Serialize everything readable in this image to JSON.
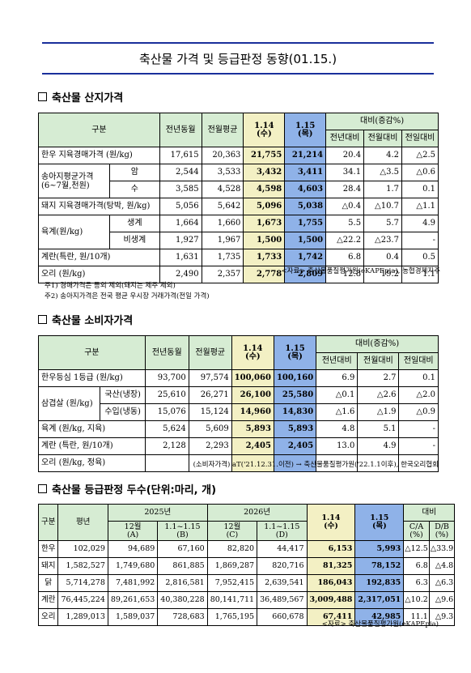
{
  "title": "축산물 가격 및 등급판정 동향(01.15.)",
  "section1": {
    "heading": "축산물 산지가격",
    "headers": {
      "col0": "구분",
      "prev_year": "전년동월",
      "prev_month": "전월평균",
      "d1": "1.14",
      "d1_sub": "(수)",
      "d2": "1.15",
      "d2_sub": "(목)",
      "compare": "대비(증감%)",
      "c1": "전년대비",
      "c2": "전월대비",
      "c3": "전일대비"
    },
    "rows": [
      {
        "label": "한우 지육경매가격 (원/kg)",
        "sub": "",
        "v": [
          "17,615",
          "20,363",
          "21,755",
          "21,214",
          "20.4",
          "4.2",
          "△2.5"
        ]
      },
      {
        "label": "송아지평균가격",
        "label2": "(6~7월,천원)",
        "sub": "암",
        "v": [
          "2,544",
          "3,533",
          "3,432",
          "3,411",
          "34.1",
          "△3.5",
          "△0.6"
        ]
      },
      {
        "label": "",
        "sub": "수",
        "v": [
          "3,585",
          "4,528",
          "4,598",
          "4,603",
          "28.4",
          "1.7",
          "0.1"
        ]
      },
      {
        "label": "돼지 지육경매가격(탕박, 원/kg)",
        "sub": "",
        "v": [
          "5,056",
          "5,642",
          "5,096",
          "5,038",
          "△0.4",
          "△10.7",
          "△1.1"
        ]
      },
      {
        "label": "육계(원/kg)",
        "sub": "생계",
        "v": [
          "1,664",
          "1,660",
          "1,673",
          "1,755",
          "5.5",
          "5.7",
          "4.9"
        ]
      },
      {
        "label": "",
        "sub": "비생계",
        "v": [
          "1,927",
          "1,967",
          "1,500",
          "1,500",
          "△22.2",
          "△23.7",
          "-"
        ]
      },
      {
        "label": "계란(특란, 원/10개)",
        "sub": "",
        "v": [
          "1,631",
          "1,735",
          "1,733",
          "1,742",
          "6.8",
          "0.4",
          "0.5"
        ]
      },
      {
        "label": "오리 (원/kg)",
        "sub": "",
        "v": [
          "2,490",
          "2,357",
          "2,778",
          "2,809",
          "12.8",
          "19.2",
          "1.1"
        ]
      }
    ],
    "source": "<자료> 축산물품질평가원(eKAPEpia), 농협경제지주",
    "note1": "주1) 경매가격은 등외 제외(돼지는 제주 제외)",
    "note2": "주2) 송아지가격은 전국 평균 우시장 거래가격(전일 가격)"
  },
  "section2": {
    "heading": "축산물 소비자가격",
    "headers": {
      "col0": "구분",
      "prev_year": "전년동월",
      "prev_month": "전월평균",
      "d1": "1.14",
      "d1_sub": "(수)",
      "d2": "1.15",
      "d2_sub": "(목)",
      "compare": "대비(증감%)",
      "c1": "전년대비",
      "c2": "전월대비",
      "c3": "전일대비"
    },
    "rows": [
      {
        "label": "한우등심 1등급 (원/kg)",
        "sub": "",
        "v": [
          "93,700",
          "97,574",
          "100,060",
          "100,160",
          "6.9",
          "2.7",
          "0.1"
        ]
      },
      {
        "label": "삼겹살 (원/kg)",
        "sub": "국산(냉장)",
        "v": [
          "25,610",
          "26,271",
          "26,100",
          "25,580",
          "△0.1",
          "△2.6",
          "△2.0"
        ]
      },
      {
        "label": "",
        "sub": "수입(냉동)",
        "v": [
          "15,076",
          "15,124",
          "14,960",
          "14,830",
          "△1.6",
          "△1.9",
          "△0.9"
        ]
      },
      {
        "label": "육계 (원/kg, 지육)",
        "sub": "",
        "v": [
          "5,624",
          "5,609",
          "5,893",
          "5,893",
          "4.8",
          "5.1",
          "-"
        ]
      },
      {
        "label": "계란 (특란, 원/10개)",
        "sub": "",
        "v": [
          "2,128",
          "2,293",
          "2,405",
          "2,405",
          "13.0",
          "4.9",
          "-"
        ]
      },
      {
        "label": "오리 (원/kg, 정육)",
        "sub": "",
        "v": [
          "",
          "",
          "",
          "",
          "",
          "",
          ""
        ]
      }
    ],
    "source": "(소비자가격) aT('21.12.31.이전) → 축산물품질평가원('22.1.1이후), 한국오리협회"
  },
  "section3": {
    "heading": "축산물 등급판정 두수(단위:마리, 개)",
    "headers": {
      "col0": "구분",
      "avg": "평년",
      "y2025": "2025년",
      "y2026": "2026년",
      "m12": "12월",
      "a": "(A)",
      "r1115": "1.1~1.15",
      "b": "(B)",
      "c": "(C)",
      "d": "(D)",
      "d1": "1.14",
      "d1_sub": "(수)",
      "d2": "1.15",
      "d2_sub": "(목)",
      "compare": "대비",
      "ca": "C/A",
      "db": "D/B",
      "pct": "(%)"
    },
    "rows": [
      {
        "label": "한우",
        "v": [
          "102,029",
          "94,689",
          "67,160",
          "82,820",
          "44,417",
          "6,153",
          "5,993",
          "△12.5",
          "△33.9"
        ]
      },
      {
        "label": "돼지",
        "v": [
          "1,582,527",
          "1,749,680",
          "861,885",
          "1,869,287",
          "820,716",
          "81,325",
          "78,152",
          "6.8",
          "△4.8"
        ]
      },
      {
        "label": "닭",
        "v": [
          "5,714,278",
          "7,481,992",
          "2,816,581",
          "7,952,415",
          "2,639,541",
          "186,043",
          "192,835",
          "6.3",
          "△6.3"
        ]
      },
      {
        "label": "계란",
        "v": [
          "76,445,224",
          "89,261,653",
          "40,380,228",
          "80,141,711",
          "36,489,567",
          "3,009,488",
          "2,317,051",
          "△10.2",
          "△9.6"
        ]
      },
      {
        "label": "오리",
        "v": [
          "1,289,013",
          "1,589,037",
          "728,683",
          "1,765,195",
          "660,678",
          "67,411",
          "42,985",
          "11.1",
          "△9.3"
        ]
      }
    ],
    "source": "<자료> 축산물품질평가원(eKAPEpia)"
  },
  "colors": {
    "title_rule": "#1a2f9b",
    "header_bg": "#d6ecd3",
    "today_col": "#8fb2e8",
    "prev_col": "#f3f0c4"
  }
}
